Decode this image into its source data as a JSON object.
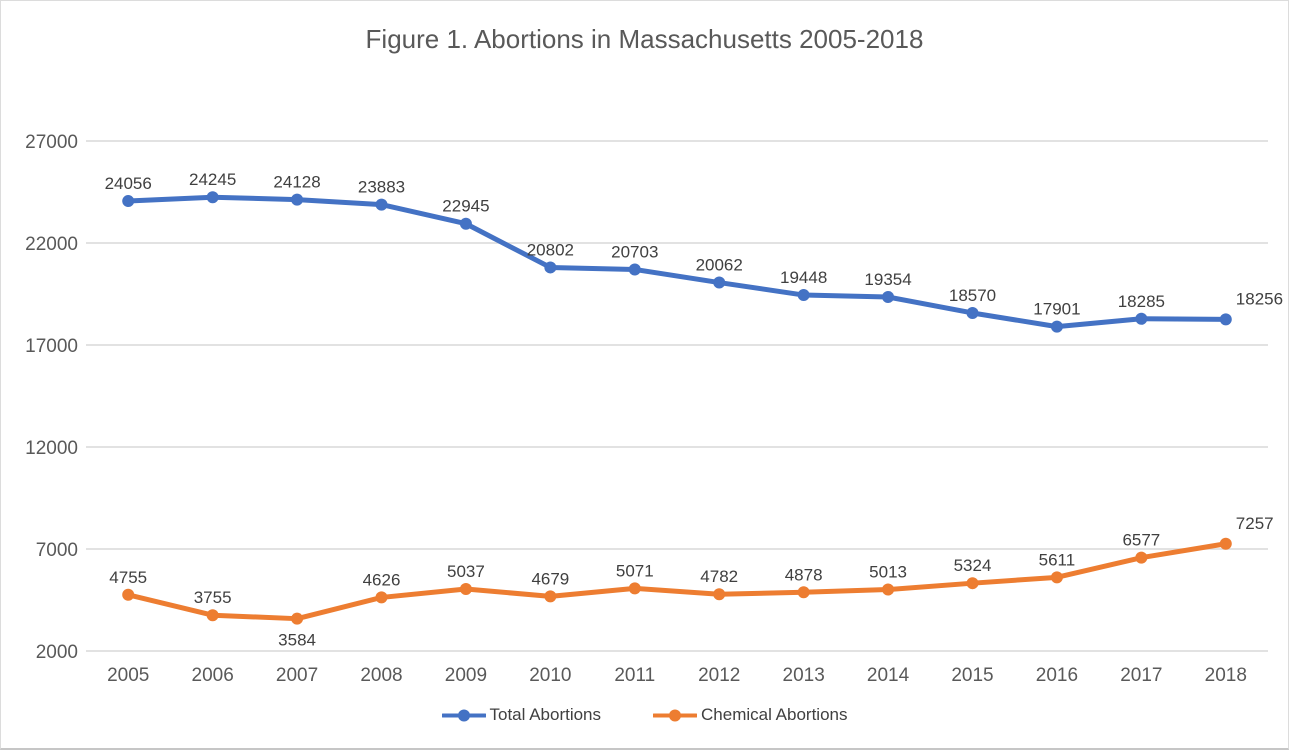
{
  "chart_data": {
    "type": "line",
    "title": "Figure 1. Abortions in Massachusetts 2005-2018",
    "categories": [
      "2005",
      "2006",
      "2007",
      "2008",
      "2009",
      "2010",
      "2011",
      "2012",
      "2013",
      "2014",
      "2015",
      "2016",
      "2017",
      "2018"
    ],
    "series": [
      {
        "name": "Total Abortions",
        "color": "#4472C4",
        "values": [
          24056,
          24245,
          24128,
          23883,
          22945,
          20802,
          20703,
          20062,
          19448,
          19354,
          18570,
          17901,
          18285,
          18256
        ],
        "label_position_overrides": {
          "2018": "above-right"
        }
      },
      {
        "name": "Chemical Abortions",
        "color": "#ED7D31",
        "values": [
          4755,
          3755,
          3584,
          4626,
          5037,
          4679,
          5071,
          4782,
          4878,
          5013,
          5324,
          5611,
          6577,
          7257
        ],
        "label_position_overrides": {
          "2007": "below",
          "2018": "above-right"
        }
      }
    ],
    "yticks": [
      2000,
      7000,
      12000,
      17000,
      22000,
      27000
    ],
    "ylim": [
      2000,
      27000
    ],
    "xlabel": "",
    "ylabel": "",
    "grid": "horizontal",
    "data_labels": "on",
    "legend_position": "bottom",
    "colors": {
      "gridline": "#D9D9D9",
      "axis_text": "#595959",
      "title_text": "#595959",
      "data_label_text": "#404040",
      "background": "#FFFFFF"
    }
  }
}
